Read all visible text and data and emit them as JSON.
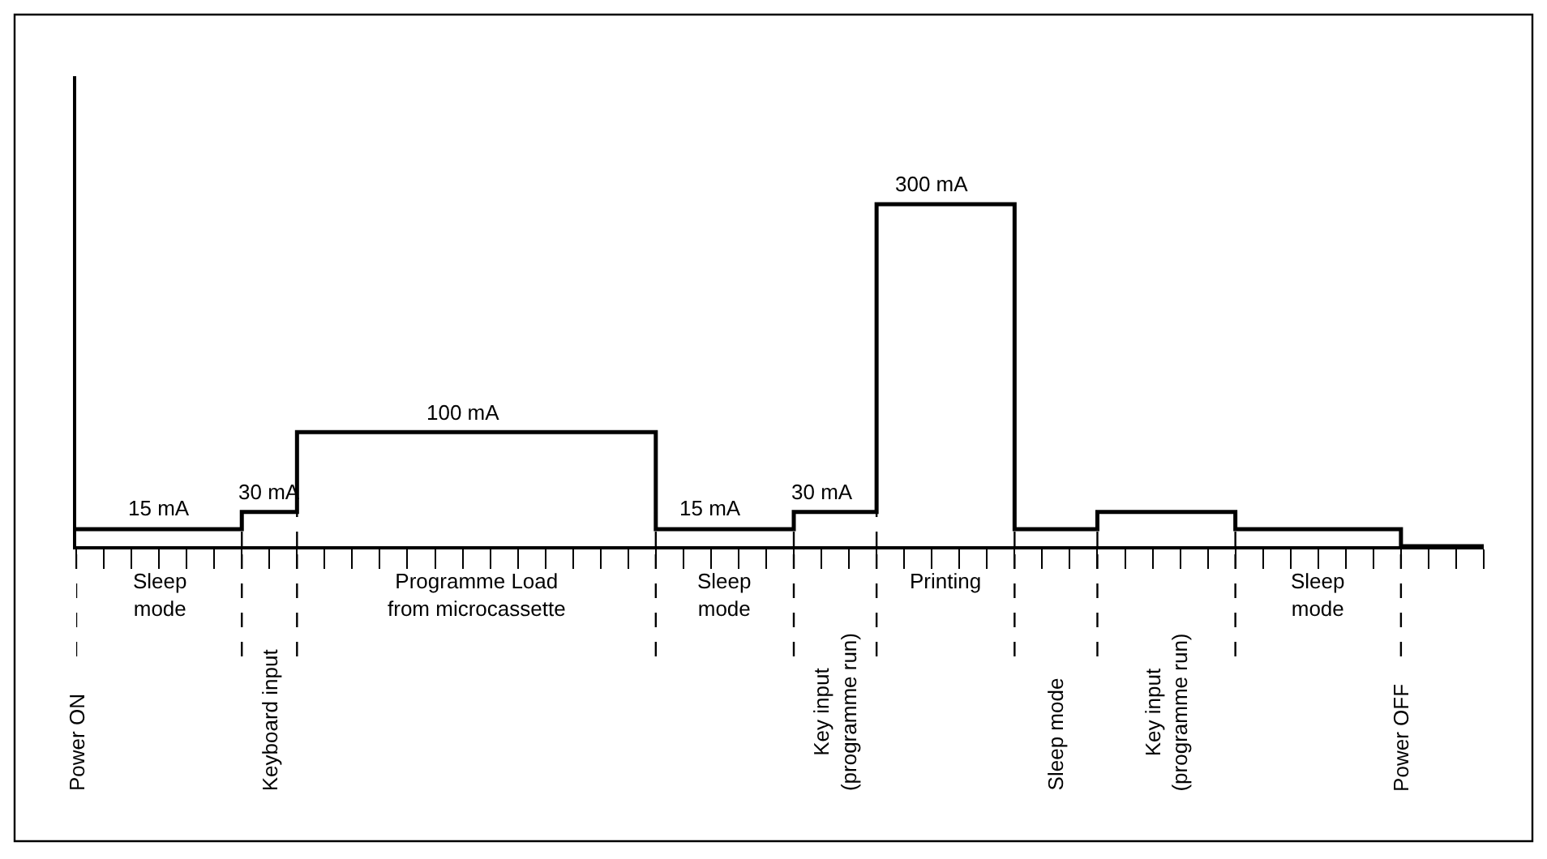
{
  "chart_data": {
    "type": "step",
    "color": "#000000",
    "categories": [
      null,
      null,
      null,
      null,
      null,
      null,
      null,
      null,
      null,
      null,
      null,
      null,
      null,
      null,
      null,
      null,
      null,
      null,
      null,
      null,
      null,
      null,
      null,
      null,
      null,
      null,
      null,
      null,
      null,
      null,
      null,
      null,
      null,
      null,
      null,
      null,
      null,
      null,
      null,
      null,
      null,
      null,
      null,
      null,
      null,
      null,
      null,
      null,
      null,
      null,
      null,
      null
    ],
    "values": [
      15,
      15,
      15,
      15,
      15,
      15,
      30,
      30,
      100,
      100,
      100,
      100,
      100,
      100,
      100,
      100,
      100,
      100,
      100,
      100,
      100,
      15,
      15,
      15,
      15,
      15,
      30,
      30,
      30,
      300,
      300,
      300,
      300,
      300,
      15,
      15,
      15,
      30,
      30,
      30,
      30,
      30,
      15,
      15,
      15,
      15,
      15,
      15,
      0,
      0,
      0,
      0
    ],
    "value_labels": [
      null,
      null,
      null,
      "15 mA",
      null,
      null,
      null,
      "30 mA",
      null,
      null,
      null,
      null,
      null,
      null,
      "100 mA",
      null,
      null,
      null,
      null,
      null,
      null,
      null,
      null,
      "15 mA",
      null,
      null,
      null,
      "30 mA",
      null,
      null,
      null,
      "300 mA",
      null,
      null,
      null,
      null,
      null,
      null,
      null,
      null,
      null,
      null,
      null,
      null,
      null,
      null,
      null,
      null,
      null,
      null,
      null,
      null
    ],
    "tick_labels": false,
    "legend": false,
    "marker": "none",
    "line_style": "solid",
    "annotations": [
      "Power ON",
      "Sleep\nmode",
      "Keyboard input",
      "Programme Load\nfrom microcassette",
      "Sleep\nmode",
      "Key input\n(programme run)",
      "Printing",
      "Sleep mode",
      "Key input\n(programme run)",
      "Sleep\nmode",
      "Power OFF"
    ]
  }
}
